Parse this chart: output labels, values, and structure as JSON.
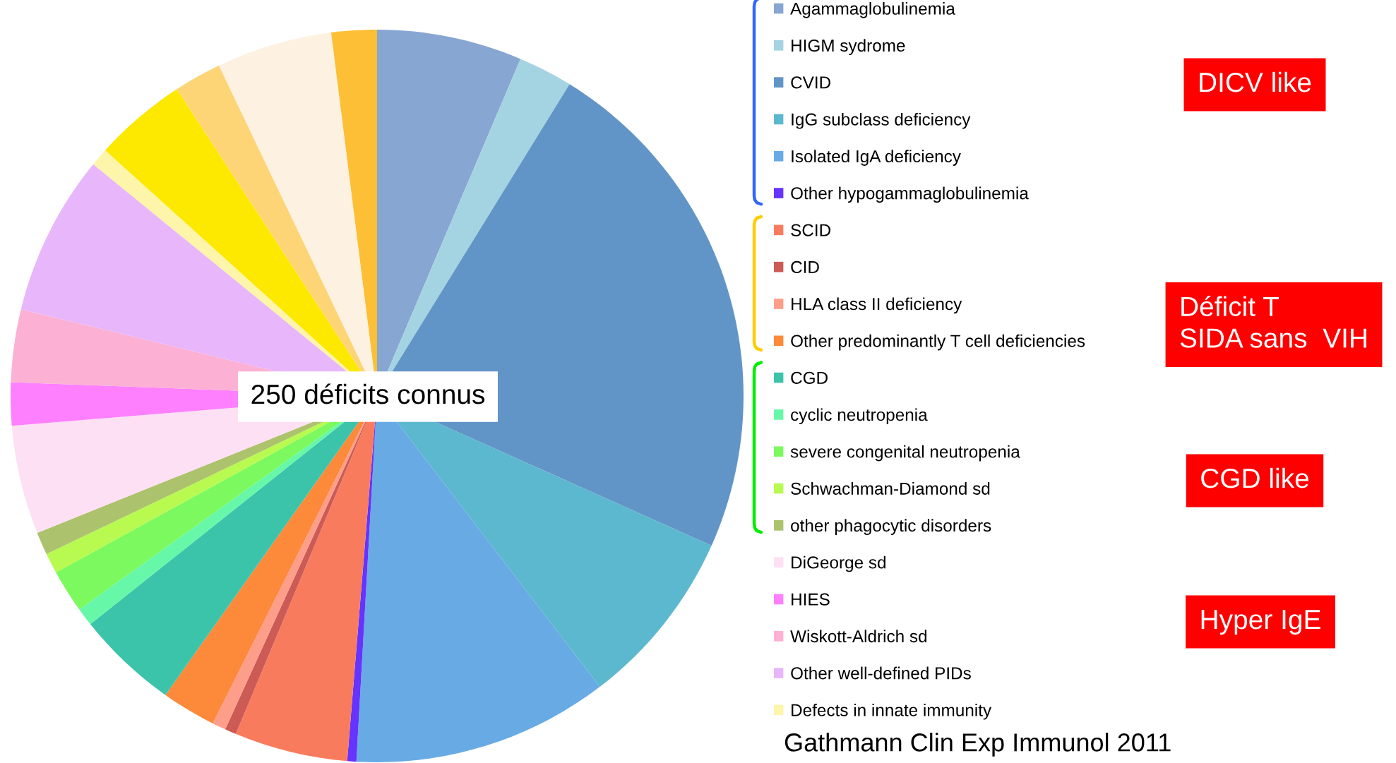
{
  "chart_data": {
    "type": "pie",
    "categories": [
      "Agammaglobulinemia",
      "HIGM sydrome",
      "CVID",
      "IgG subclass deficiency",
      "Isolated IgA deficiency",
      "Other hypogammaglobulinemia",
      "SCID",
      "CID",
      "HLA class II deficiency",
      "Other predominantly T cell deficiencies",
      "CGD",
      "cyclic neutropenia",
      "severe congenital neutropenia",
      "Schwachman-Diamond sd",
      "other phagocytic disorders",
      "DiGeorge sd",
      "HIES",
      "Wiskott-Aldrich sd",
      "Other well-defined PIDs",
      "Defects in innate immunity",
      null,
      null,
      null,
      null
    ],
    "values": [
      6.4,
      2.4,
      22.9,
      7.9,
      11.3,
      0.4,
      5.0,
      0.5,
      0.6,
      2.4,
      4.5,
      0.8,
      1.9,
      0.9,
      1.0,
      4.8,
      1.9,
      3.2,
      7.1,
      0.8,
      4.1,
      2.1,
      5.1,
      2.0
    ],
    "colors": [
      "#87a6d2",
      "#a4d4e2",
      "#6295c7",
      "#5cb8ce",
      "#68abe4",
      "#6633ff",
      "#f97b5e",
      "#cc5a55",
      "#fd9e8a",
      "#fd893b",
      "#3cc4ab",
      "#66f8a8",
      "#7cf95e",
      "#b8fa50",
      "#adc26d",
      "#fde0f3",
      "#fe80fe",
      "#fcb1d4",
      "#e8b6fb",
      "#fdf5a9",
      "#fde800",
      "#fdd577",
      "#fdf2e2",
      "#fdbf36"
    ],
    "legend": "right",
    "annotations": [
      "250 déficits connus",
      "DICV like",
      "Déficit T\nSIDA sans  VIH",
      "CGD like",
      "Hyper IgE",
      "Gathmann Clin Exp Immunol 2011"
    ]
  }
}
